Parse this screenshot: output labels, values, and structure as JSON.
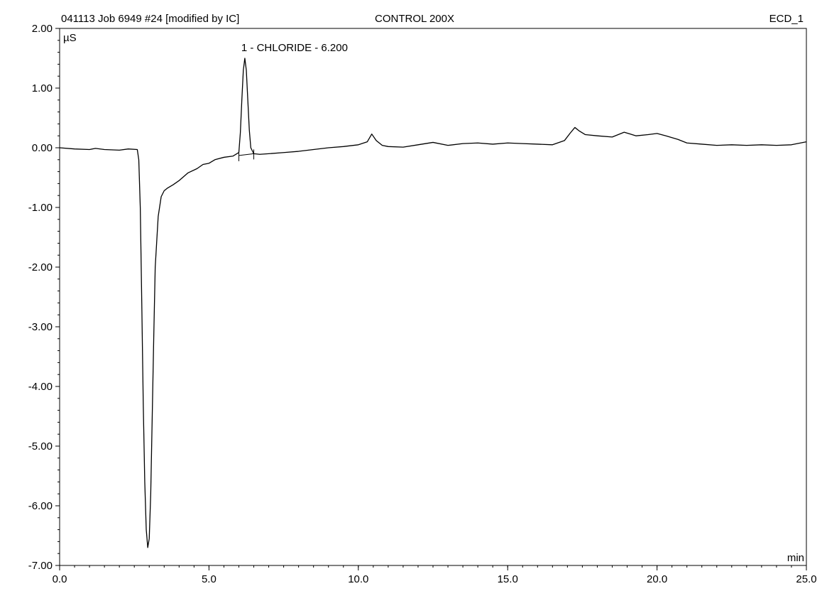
{
  "header": {
    "run_id": "041113 Job 6949 #24 [modified by IC]",
    "sample": "CONTROL 200X",
    "channel": "ECD_1"
  },
  "colors": {
    "trace": "#000000",
    "background": "#ffffff",
    "axis": "#000000"
  },
  "chart_data": {
    "type": "line",
    "title": "",
    "xlabel": "min",
    "ylabel": "µS",
    "xlim": [
      0,
      25
    ],
    "ylim": [
      -7,
      2
    ],
    "grid": false,
    "x_ticks": [
      "0.0",
      "5.0",
      "10.0",
      "15.0",
      "20.0",
      "25.0"
    ],
    "y_ticks": [
      "2.00",
      "1.00",
      "0.00",
      "-1.00",
      "-2.00",
      "-3.00",
      "-4.00",
      "-5.00",
      "-6.00",
      "-7.00"
    ],
    "annotations": [
      {
        "text": "1 - CHLORIDE - 6.200",
        "x": 6.2,
        "y": 1.5
      }
    ],
    "series": [
      {
        "x": [
          0.0,
          0.5,
          1.0,
          1.2,
          1.5,
          2.0,
          2.3,
          2.6,
          2.65,
          2.7,
          2.75,
          2.8,
          2.85,
          2.9,
          2.95,
          3.0,
          3.05,
          3.1,
          3.15,
          3.2,
          3.3,
          3.4,
          3.5,
          3.6,
          3.8,
          4.0,
          4.3,
          4.6,
          4.8,
          5.0,
          5.2,
          5.5,
          5.8,
          6.0,
          6.05,
          6.1,
          6.15,
          6.2,
          6.25,
          6.3,
          6.35,
          6.4,
          6.5,
          6.7,
          7.0,
          7.5,
          8.0,
          8.5,
          9.0,
          9.5,
          10.0,
          10.3,
          10.45,
          10.6,
          10.8,
          11.0,
          11.5,
          12.0,
          12.5,
          13.0,
          13.5,
          14.0,
          14.5,
          15.0,
          15.5,
          16.0,
          16.5,
          16.9,
          17.1,
          17.25,
          17.4,
          17.6,
          18.0,
          18.5,
          18.9,
          19.3,
          19.7,
          20.0,
          20.3,
          20.7,
          21.0,
          21.5,
          22.0,
          22.5,
          23.0,
          23.5,
          24.0,
          24.5,
          25.0
        ],
        "y": [
          0.0,
          -0.02,
          -0.03,
          -0.01,
          -0.03,
          -0.04,
          -0.02,
          -0.03,
          -0.2,
          -1.0,
          -2.6,
          -4.3,
          -5.6,
          -6.4,
          -6.7,
          -6.55,
          -5.8,
          -4.5,
          -3.2,
          -2.0,
          -1.15,
          -0.82,
          -0.72,
          -0.68,
          -0.62,
          -0.55,
          -0.42,
          -0.35,
          -0.28,
          -0.26,
          -0.2,
          -0.16,
          -0.14,
          -0.08,
          0.25,
          0.8,
          1.3,
          1.5,
          1.3,
          0.8,
          0.3,
          0.0,
          -0.1,
          -0.11,
          -0.1,
          -0.08,
          -0.06,
          -0.03,
          0.0,
          0.02,
          0.05,
          0.1,
          0.23,
          0.12,
          0.04,
          0.02,
          0.01,
          0.05,
          0.09,
          0.04,
          0.07,
          0.08,
          0.06,
          0.08,
          0.07,
          0.06,
          0.05,
          0.12,
          0.25,
          0.34,
          0.28,
          0.22,
          0.2,
          0.18,
          0.26,
          0.2,
          0.22,
          0.24,
          0.2,
          0.14,
          0.08,
          0.06,
          0.04,
          0.05,
          0.04,
          0.05,
          0.04,
          0.05,
          0.1
        ]
      }
    ],
    "baseline": {
      "x": [
        6.0,
        6.5
      ],
      "y": [
        -0.13,
        -0.1
      ]
    }
  }
}
